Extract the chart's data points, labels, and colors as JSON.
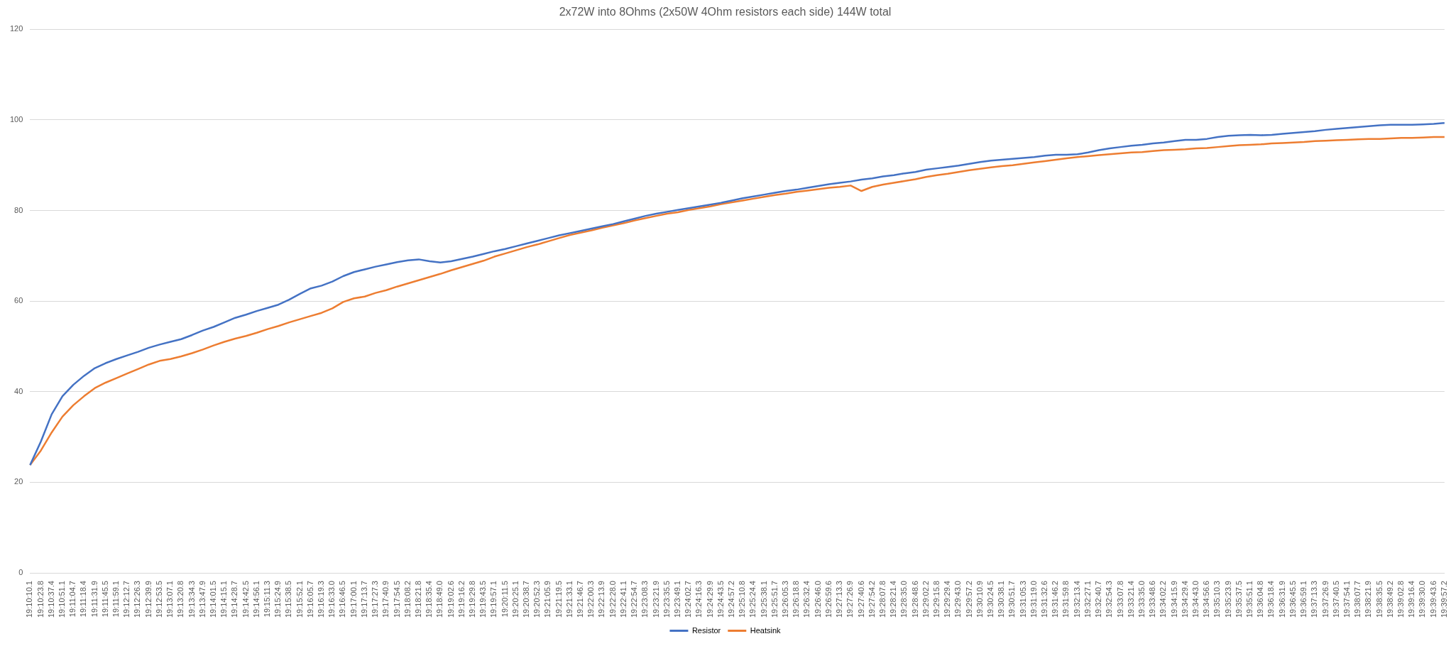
{
  "chart_data": {
    "type": "line",
    "title": "2x72W into 8Ohms (2x50W 4Ohm resistors each side) 144W total",
    "categories": [
      "19:10:10.1",
      "19:10:23.8",
      "19:10:37.4",
      "19:10:51.1",
      "19:11:04.7",
      "19:11:18.4",
      "19:11:31.9",
      "19:11:45.5",
      "19:11:59.1",
      "19:12:12.7",
      "19:12:26.3",
      "19:12:39.9",
      "19:12:53.5",
      "19:13:07.1",
      "19:13:20.8",
      "19:13:34.3",
      "19:13:47.9",
      "19:14:01.5",
      "19:14:15.1",
      "19:14:28.7",
      "19:14:42.5",
      "19:14:56.1",
      "19:15:11.3",
      "19:15:24.9",
      "19:15:38.5",
      "19:15:52.1",
      "19:16:05.7",
      "19:16:19.3",
      "19:16:33.0",
      "19:16:46.5",
      "19:17:00.1",
      "19:17:13.7",
      "19:17:27.3",
      "19:17:40.9",
      "19:17:54.5",
      "19:18:08.2",
      "19:18:21.8",
      "19:18:35.4",
      "19:18:49.0",
      "19:19:02.6",
      "19:19:16.2",
      "19:19:29.8",
      "19:19:43.5",
      "19:19:57.1",
      "19:20:11.5",
      "19:20:25.1",
      "19:20:38.7",
      "19:20:52.3",
      "19:21:05.9",
      "19:21:19.5",
      "19:21:33.1",
      "19:21:46.7",
      "19:22:00.3",
      "19:22:13.9",
      "19:22:28.0",
      "19:22:41.1",
      "19:22:54.7",
      "19:23:08.3",
      "19:23:21.9",
      "19:23:35.5",
      "19:23:49.1",
      "19:24:02.7",
      "19:24:16.3",
      "19:24:29.9",
      "19:24:43.5",
      "19:24:57.2",
      "19:25:10.8",
      "19:25:24.4",
      "19:25:38.1",
      "19:25:51.7",
      "19:26:05.3",
      "19:26:18.8",
      "19:26:32.4",
      "19:26:46.0",
      "19:26:59.6",
      "19:27:13.3",
      "19:27:26.9",
      "19:27:40.6",
      "19:27:54.2",
      "19:28:07.8",
      "19:28:21.4",
      "19:28:35.0",
      "19:28:48.6",
      "19:29:02.2",
      "19:29:15.8",
      "19:29:29.4",
      "19:29:43.0",
      "19:29:57.2",
      "19:30:10.9",
      "19:30:24.5",
      "19:30:38.1",
      "19:30:51.7",
      "19:31:05.3",
      "19:31:19.0",
      "19:31:32.6",
      "19:31:46.2",
      "19:31:59.8",
      "19:32:13.4",
      "19:32:27.1",
      "19:32:40.7",
      "19:32:54.3",
      "19:33:07.8",
      "19:33:21.4",
      "19:33:35.0",
      "19:33:48.6",
      "19:34:02.2",
      "19:34:15.9",
      "19:34:29.4",
      "19:34:43.0",
      "19:34:56.6",
      "19:35:10.3",
      "19:35:23.9",
      "19:35:37.5",
      "19:35:51.1",
      "19:36:04.8",
      "19:36:18.4",
      "19:36:31.9",
      "19:36:45.5",
      "19:36:59.1",
      "19:37:13.3",
      "19:37:26.9",
      "19:37:40.5",
      "19:37:54.1",
      "19:38:07.7",
      "19:38:21.9",
      "19:38:35.5",
      "19:38:49.2",
      "19:39:02.8",
      "19:39:16.4",
      "19:39:30.0",
      "19:39:43.6",
      "19:39:57.2"
    ],
    "series": [
      {
        "name": "Resistor",
        "color": "#4472c4",
        "values": [
          23.8,
          29,
          35,
          39,
          41.5,
          43.5,
          45.2,
          46.3,
          47.2,
          48,
          48.8,
          49.7,
          50.4,
          51,
          51.6,
          52.5,
          53.5,
          54.3,
          55.3,
          56.3,
          57,
          57.8,
          58.5,
          59.2,
          60.3,
          61.6,
          62.8,
          63.4,
          64.3,
          65.5,
          66.4,
          67,
          67.6,
          68.1,
          68.6,
          69,
          69.2,
          68.8,
          68.5,
          68.8,
          69.3,
          69.8,
          70.4,
          71,
          71.5,
          72.1,
          72.7,
          73.3,
          73.9,
          74.5,
          75,
          75.5,
          76,
          76.5,
          77,
          77.6,
          78.2,
          78.8,
          79.3,
          79.7,
          80.1,
          80.5,
          80.9,
          81.3,
          81.7,
          82.2,
          82.7,
          83.1,
          83.5,
          83.9,
          84.3,
          84.6,
          85,
          85.4,
          85.8,
          86.1,
          86.4,
          86.8,
          87.1,
          87.5,
          87.8,
          88.2,
          88.5,
          89,
          89.3,
          89.6,
          89.9,
          90.3,
          90.7,
          91,
          91.2,
          91.4,
          91.6,
          91.8,
          92.1,
          92.3,
          92.3,
          92.4,
          92.8,
          93.3,
          93.7,
          94,
          94.3,
          94.5,
          94.8,
          95,
          95.3,
          95.6,
          95.6,
          95.8,
          96.2,
          96.5,
          96.6,
          96.7,
          96.6,
          96.7,
          96.9,
          97.1,
          97.3,
          97.5,
          97.8,
          98,
          98.2,
          98.4,
          98.6,
          98.8,
          98.9,
          98.9,
          98.9,
          99,
          99.1,
          99.3
        ]
      },
      {
        "name": "Heatsink",
        "color": "#ed7d31",
        "values": [
          23.8,
          27,
          31,
          34.5,
          37,
          39,
          40.8,
          42,
          43,
          44,
          45,
          46,
          46.8,
          47.2,
          47.8,
          48.5,
          49.3,
          50.2,
          51,
          51.7,
          52.3,
          53,
          53.8,
          54.5,
          55.3,
          56,
          56.7,
          57.4,
          58.4,
          59.8,
          60.6,
          61,
          61.8,
          62.4,
          63.2,
          63.9,
          64.6,
          65.3,
          66,
          66.8,
          67.5,
          68.2,
          68.9,
          69.8,
          70.5,
          71.2,
          71.9,
          72.5,
          73.2,
          73.9,
          74.6,
          75.1,
          75.6,
          76.2,
          76.7,
          77.2,
          77.8,
          78.3,
          78.8,
          79.3,
          79.6,
          80.1,
          80.5,
          80.9,
          81.4,
          81.8,
          82.2,
          82.6,
          83,
          83.4,
          83.7,
          84.1,
          84.4,
          84.7,
          85,
          85.2,
          85.5,
          84.3,
          85.2,
          85.7,
          86.1,
          86.5,
          86.9,
          87.4,
          87.8,
          88.1,
          88.5,
          88.9,
          89.2,
          89.5,
          89.8,
          90,
          90.3,
          90.6,
          90.9,
          91.2,
          91.5,
          91.8,
          92,
          92.2,
          92.4,
          92.6,
          92.8,
          92.9,
          93.1,
          93.3,
          93.4,
          93.5,
          93.7,
          93.8,
          94,
          94.2,
          94.4,
          94.5,
          94.6,
          94.8,
          94.9,
          95,
          95.1,
          95.3,
          95.4,
          95.5,
          95.6,
          95.7,
          95.8,
          95.8,
          95.9,
          96,
          96,
          96.1,
          96.2,
          96.2
        ]
      }
    ],
    "ylim": [
      0,
      120
    ],
    "yticks": [
      0,
      20,
      40,
      60,
      80,
      100,
      120
    ],
    "grid": "y",
    "legend": "bottom",
    "marker": "none",
    "line_style": "solid"
  }
}
